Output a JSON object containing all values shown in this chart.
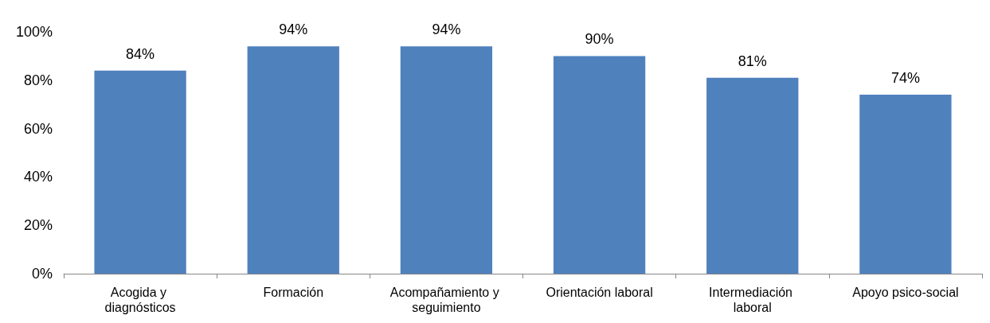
{
  "chart_data": {
    "type": "bar",
    "categories": [
      "Acogida y diagnósticos",
      "Formación",
      "Acompañamiento y seguimiento",
      "Orientación laboral",
      "Intermediación laboral",
      "Apoyo psico-social"
    ],
    "values": [
      84,
      94,
      94,
      90,
      81,
      74
    ],
    "value_labels": [
      "84%",
      "94%",
      "94%",
      "90%",
      "81%",
      "74%"
    ],
    "color": "#4f81bd",
    "ylim": [
      0,
      100
    ],
    "yticks": [
      {
        "value": 0,
        "label": "0%"
      },
      {
        "value": 20,
        "label": "20%"
      },
      {
        "value": 40,
        "label": "40%"
      },
      {
        "value": 60,
        "label": "60%"
      },
      {
        "value": 80,
        "label": "80%"
      },
      {
        "value": 100,
        "label": "100%"
      }
    ],
    "grid": false
  }
}
